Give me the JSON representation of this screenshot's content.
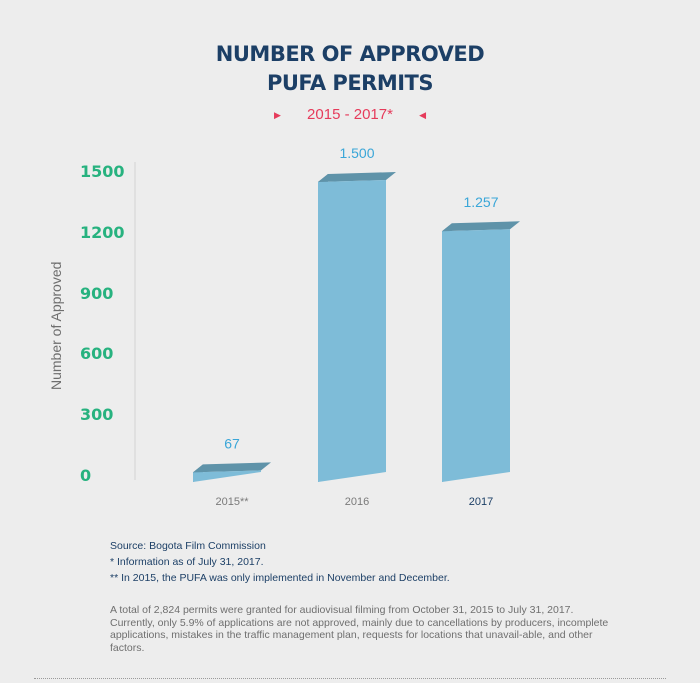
{
  "chart_data": {
    "type": "bar",
    "title_lines": [
      "NUMBER OF APPROVED",
      "PUFA PERMITS"
    ],
    "subtitle": "2015 - 2017*",
    "ylabel": "Number of Approved",
    "xlabel": "",
    "ylim": [
      0,
      1500
    ],
    "yticks": [
      "0",
      "300",
      "600",
      "900",
      "1200",
      "1500"
    ],
    "categories": [
      "2015**",
      "2016",
      "2017"
    ],
    "values": [
      67,
      1500,
      1257
    ],
    "data_labels": [
      "67",
      "1.500",
      "1.257"
    ],
    "grid": false,
    "colors": {
      "bar_front": "#7ebcd8",
      "bar_side": "#4f8196",
      "bar_top": "#5f93a9",
      "value_label": "#3aa6d8",
      "ytick": "#27b27f",
      "title": "#1c3f66",
      "subtitle": "#e63b5b"
    }
  },
  "notes": {
    "source_label": "Source:",
    "source": "Bogota Film Commission",
    "note1": "* Information as of July 31, 2017.",
    "note2": "** In 2015, the PUFA was only implemented in November and December."
  },
  "summary": "A total of 2,824 permits were granted for audiovisual filming from October 31, 2015 to July 31, 2017. Currently, only 5.9% of applications are not approved, mainly due to cancellations by producers, incomplete applications, mistakes in the traffic management plan, requests for locations that unavail-able, and other factors."
}
